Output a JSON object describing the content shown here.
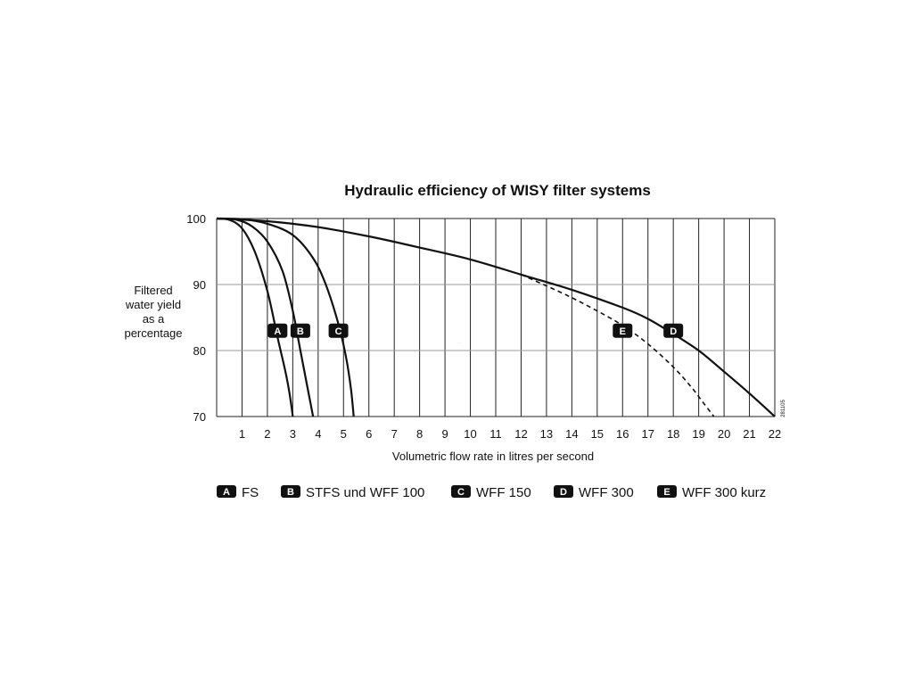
{
  "chart_data": {
    "type": "line",
    "title": "Hydraulic efficiency of WISY filter systems",
    "xlabel": "Volumetric flow rate in litres per second",
    "ylabel_lines": [
      "Filtered",
      "water yield",
      "as a",
      "percentage"
    ],
    "xlim": [
      0,
      22
    ],
    "ylim": [
      70,
      100
    ],
    "x_ticks": [
      1,
      2,
      3,
      4,
      5,
      6,
      7,
      8,
      9,
      10,
      11,
      12,
      13,
      14,
      15,
      16,
      17,
      18,
      19,
      20,
      21,
      22
    ],
    "y_ticks": [
      70,
      80,
      90,
      100
    ],
    "grid": true,
    "figure_code": "281105",
    "series": [
      {
        "id": "A",
        "name": "FS",
        "style": "solid",
        "x": [
          0,
          0.5,
          1.0,
          1.5,
          2.0,
          2.4,
          2.7,
          2.85,
          2.95,
          3.0
        ],
        "y": [
          100,
          99.8,
          98.5,
          95,
          89,
          82,
          77,
          74,
          71.5,
          70
        ],
        "badge_at": [
          2.4,
          83
        ]
      },
      {
        "id": "B",
        "name": "STFS und WFF 100",
        "style": "solid",
        "x": [
          0,
          0.8,
          1.4,
          2.0,
          2.6,
          3.0,
          3.3,
          3.55,
          3.7,
          3.8
        ],
        "y": [
          100,
          99.8,
          98.8,
          96.5,
          92,
          86,
          80,
          75,
          72,
          70
        ],
        "badge_at": [
          3.3,
          83
        ]
      },
      {
        "id": "C",
        "name": "WFF 150",
        "style": "solid",
        "x": [
          0,
          1.0,
          2.0,
          3.0,
          3.8,
          4.3,
          4.8,
          5.1,
          5.3,
          5.4
        ],
        "y": [
          100,
          99.9,
          99.2,
          97.5,
          94,
          90,
          84,
          79,
          74,
          70
        ],
        "badge_at": [
          4.8,
          83
        ]
      },
      {
        "id": "D",
        "name": "WFF 300",
        "style": "solid",
        "x": [
          0,
          2,
          4,
          6,
          8,
          10,
          12,
          14,
          16,
          17,
          18,
          19,
          20,
          21,
          22
        ],
        "y": [
          100,
          99.6,
          98.7,
          97.3,
          95.6,
          93.8,
          91.5,
          89.2,
          86.5,
          84.8,
          82.5,
          80,
          76.8,
          73.5,
          70
        ],
        "badge_at": [
          18,
          83
        ]
      },
      {
        "id": "E",
        "name": "WFF 300 kurz",
        "style": "dashed",
        "x": [
          12,
          13,
          14,
          15,
          16,
          17,
          18,
          18.7,
          19.2,
          19.6
        ],
        "y": [
          91.5,
          89.8,
          88,
          86,
          83.8,
          81,
          77.5,
          74.5,
          72,
          70
        ],
        "badge_at": [
          16,
          83
        ]
      }
    ],
    "legend": [
      {
        "badge": "A",
        "label": "FS"
      },
      {
        "badge": "B",
        "label": "STFS und WFF 100"
      },
      {
        "badge": "C",
        "label": "WFF 150"
      },
      {
        "badge": "D",
        "label": "WFF 300"
      },
      {
        "badge": "E",
        "label": "WFF 300 kurz"
      }
    ],
    "legend_placement": "bottom"
  }
}
